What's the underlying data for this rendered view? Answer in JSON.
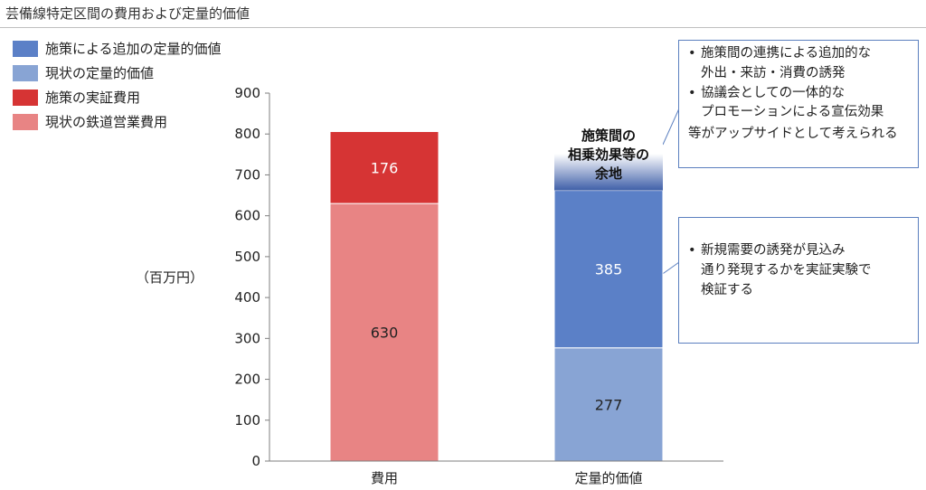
{
  "title": "芸備線特定区間の費用および定量的価値",
  "legend": [
    {
      "label": "施策による追加の定量的価値",
      "color": "#5b80c7"
    },
    {
      "label": "現状の定量的価値",
      "color": "#88a4d4"
    },
    {
      "label": "施策の実証費用",
      "color": "#d63434"
    },
    {
      "label": "現状の鉄道営業費用",
      "color": "#e88484"
    }
  ],
  "unit_label": "（百万円）",
  "chart_data": {
    "type": "bar",
    "stacked": true,
    "categories": [
      "費用",
      "定量的価値"
    ],
    "ylim": [
      0,
      900
    ],
    "yticks": [
      0,
      100,
      200,
      300,
      400,
      500,
      600,
      700,
      800,
      900
    ],
    "ylabel": "（百万円）",
    "series": [
      {
        "name": "現状の鉄道営業費用",
        "values": [
          630,
          null
        ],
        "color": "#e88484"
      },
      {
        "name": "施策の実証費用",
        "values": [
          176,
          null
        ],
        "color": "#d63434"
      },
      {
        "name": "現状の定量的価値",
        "values": [
          null,
          277
        ],
        "color": "#88a4d4"
      },
      {
        "name": "施策による追加の定量的価値",
        "values": [
          null,
          385
        ],
        "color": "#5b80c7"
      }
    ],
    "synergy_label_lines": [
      "施策間の",
      "相乗効果等の",
      "余地"
    ]
  },
  "callouts": {
    "top": {
      "bullets": [
        "施策間の連携による追加的な\n外出・来訪・消費の誘発",
        "協議会としての一体的な\nプロモーションによる宣伝効果"
      ],
      "footer": "等がアップサイドとして考えられる"
    },
    "mid": {
      "bullets": [
        "新規需要の誘発が見込み\n通り発現するかを実証実験で\n検証する"
      ]
    }
  }
}
